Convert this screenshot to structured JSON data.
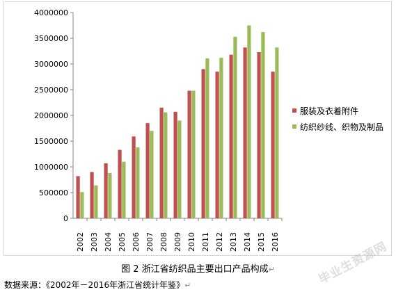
{
  "chart_data": {
    "type": "bar",
    "categories": [
      "2002",
      "2003",
      "2004",
      "2005",
      "2006",
      "2007",
      "2008",
      "2009",
      "2010",
      "2011",
      "2012",
      "2013",
      "2014",
      "2015",
      "2016"
    ],
    "series": [
      {
        "name": "服装及衣着附件",
        "color": "#c0504d",
        "values": [
          820000,
          900000,
          1070000,
          1330000,
          1590000,
          1850000,
          2150000,
          2070000,
          2480000,
          2900000,
          2850000,
          3180000,
          3320000,
          3230000,
          2850000
        ]
      },
      {
        "name": "纺织纱线、织物及制品",
        "color": "#9bbb59",
        "values": [
          510000,
          640000,
          880000,
          1100000,
          1380000,
          1700000,
          2060000,
          1900000,
          2480000,
          3110000,
          3120000,
          3530000,
          3750000,
          3620000,
          3320000
        ]
      }
    ],
    "ylim": [
      0,
      4000000
    ],
    "yticks": [
      "0",
      "500000",
      "1000000",
      "1500000",
      "2000000",
      "2500000",
      "3000000",
      "3500000",
      "4000000"
    ],
    "grid": false,
    "legend": "right",
    "title": "",
    "xlabel": "",
    "ylabel": ""
  },
  "caption": "图 2  浙江省纺织品主要出口产品构成",
  "source": "数据来源：《2002年－2016年浙江省统计年鉴》",
  "return_mark": "↵",
  "watermark": "毕业生资源网"
}
